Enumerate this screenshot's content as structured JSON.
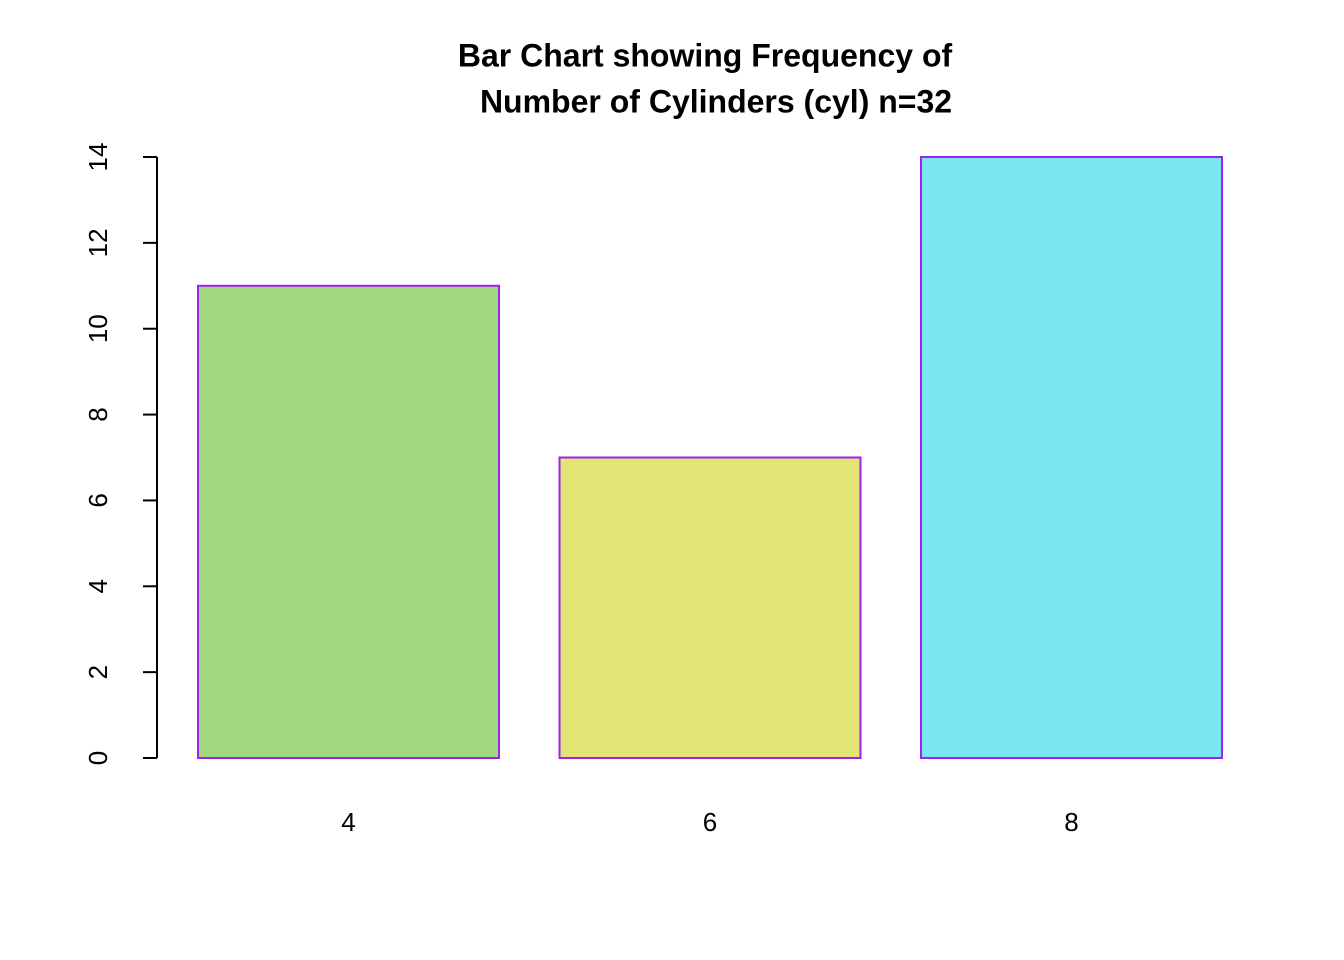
{
  "chart_data": {
    "type": "bar",
    "title": [
      "Bar Chart showing Frequency of",
      "Number of Cylinders (cyl) n=32"
    ],
    "categories": [
      "4",
      "6",
      "8"
    ],
    "values": [
      11,
      7,
      14
    ],
    "colors": [
      "#a2d97e",
      "#e2e474",
      "#7ae5ef"
    ],
    "border_color": "#a020f0",
    "ylim": [
      0,
      14
    ],
    "yticks": [
      0,
      2,
      4,
      6,
      8,
      10,
      12,
      14
    ],
    "grid": false
  }
}
